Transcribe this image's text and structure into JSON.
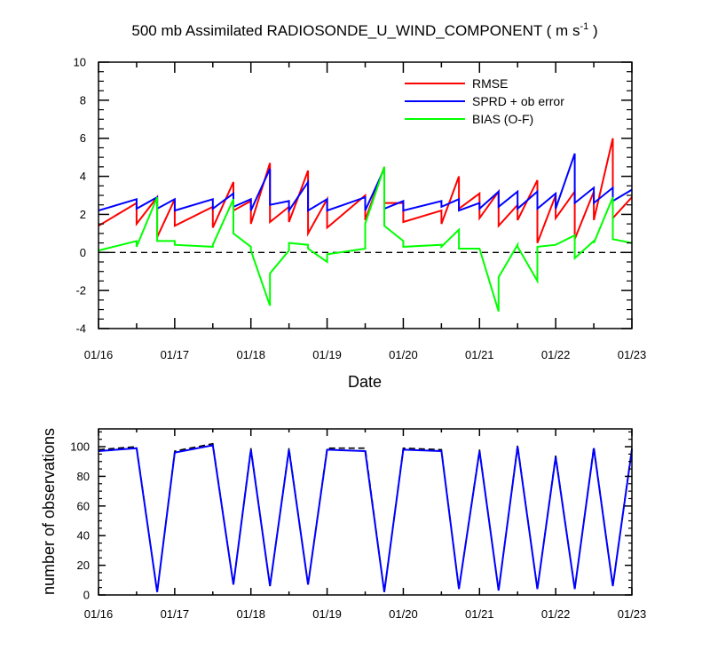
{
  "chart_data": [
    {
      "type": "line",
      "title_main": "500 mb Assimilated RADIOSONDE_U_WIND_COMPONENT ( m s",
      "title_sup": "-1",
      "title_end": " )",
      "xlabel": "Date",
      "ylabel": "",
      "xlim": [
        0,
        7
      ],
      "ylim": [
        -4,
        10
      ],
      "yticks": [
        -4,
        -2,
        0,
        2,
        4,
        6,
        8,
        10
      ],
      "xticks": [
        0,
        1,
        2,
        3,
        4,
        5,
        6,
        7
      ],
      "xtick_labels": [
        "01/16",
        "01/17",
        "01/18",
        "01/19",
        "01/20",
        "01/21",
        "01/22",
        "01/23"
      ],
      "legend_position": "top-right",
      "reference_line": 0,
      "series": [
        {
          "name": "RMSE",
          "color": "#ff0000",
          "x": [
            0,
            0.5,
            0.5,
            0.77,
            0.77,
            1,
            1,
            1.5,
            1.5,
            1.77,
            1.77,
            2,
            2,
            2.25,
            2.25,
            2.5,
            2.5,
            2.75,
            2.75,
            3,
            3,
            3.5,
            3.5,
            3.75,
            3.75,
            4,
            4,
            4.5,
            4.5,
            4.73,
            4.73,
            5,
            5,
            5.25,
            5.25,
            5.5,
            5.5,
            5.76,
            5.76,
            6,
            6,
            6.25,
            6.25,
            6.5,
            6.5,
            6.75,
            6.75,
            7
          ],
          "y": [
            1.4,
            2.6,
            1.5,
            2.9,
            0.8,
            2.8,
            1.4,
            2.4,
            1.3,
            3.7,
            2.2,
            2.7,
            1.5,
            4.7,
            1.6,
            2.4,
            1.6,
            4.3,
            1.0,
            2.8,
            1.3,
            3.0,
            1.7,
            4.5,
            2.6,
            2.6,
            1.6,
            2.2,
            1.5,
            4.0,
            2.3,
            3.1,
            1.8,
            3.2,
            1.4,
            2.5,
            1.7,
            3.8,
            0.5,
            3.0,
            1.8,
            3.2,
            0.7,
            3.2,
            1.7,
            6.0,
            1.8,
            2.9
          ]
        },
        {
          "name": "SPRD + ob error",
          "color": "#0000ff",
          "x": [
            0,
            0.5,
            0.5,
            0.77,
            0.77,
            1,
            1,
            1.5,
            1.5,
            1.77,
            1.77,
            2,
            2,
            2.25,
            2.25,
            2.5,
            2.5,
            2.75,
            2.75,
            3,
            3,
            3.5,
            3.5,
            3.75,
            3.75,
            4,
            4,
            4.5,
            4.5,
            4.73,
            4.73,
            5,
            5,
            5.25,
            5.25,
            5.5,
            5.5,
            5.76,
            5.76,
            6,
            6,
            6.25,
            6.25,
            6.5,
            6.5,
            6.75,
            6.75,
            7
          ],
          "y": [
            2.2,
            2.8,
            2.3,
            2.9,
            2.3,
            2.8,
            2.2,
            2.8,
            2.3,
            3.1,
            2.4,
            2.8,
            2.2,
            4.4,
            2.5,
            2.7,
            2.2,
            3.7,
            2.2,
            2.8,
            2.2,
            2.9,
            2.2,
            4.4,
            2.3,
            2.7,
            2.2,
            2.7,
            2.4,
            2.8,
            2.2,
            2.6,
            2.3,
            3.2,
            2.4,
            3.2,
            2.3,
            3.2,
            2.3,
            3.1,
            2.3,
            5.2,
            2.6,
            3.4,
            2.6,
            3.4,
            2.7,
            3.3
          ]
        },
        {
          "name": "BIAS (O-F)",
          "color": "#00ff00",
          "x": [
            0,
            0.5,
            0.5,
            0.77,
            0.77,
            1,
            1,
            1.5,
            1.5,
            1.77,
            1.77,
            2,
            2,
            2.25,
            2.25,
            2.5,
            2.5,
            2.75,
            2.75,
            3,
            3,
            3.5,
            3.5,
            3.75,
            3.75,
            4,
            4,
            4.5,
            4.5,
            4.73,
            4.73,
            5,
            5,
            5.25,
            5.25,
            5.5,
            5.5,
            5.76,
            5.76,
            6,
            6,
            6.25,
            6.25,
            6.5,
            6.5,
            6.75,
            6.75,
            7
          ],
          "y": [
            0.1,
            0.6,
            0.3,
            2.9,
            0.6,
            0.6,
            0.4,
            0.3,
            0.4,
            2.8,
            1.0,
            0.3,
            0.1,
            -2.8,
            -1.1,
            0.1,
            0.5,
            0.4,
            0.2,
            -0.5,
            -0.1,
            0.2,
            1.5,
            4.5,
            1.4,
            0.6,
            0.3,
            0.4,
            0.3,
            1.2,
            0.2,
            0.2,
            0.2,
            -3.1,
            -1.3,
            0.4,
            0.3,
            -1.5,
            0.3,
            0.4,
            0.4,
            0.9,
            -0.3,
            0.6,
            0.5,
            2.9,
            0.7,
            0.5
          ]
        }
      ]
    },
    {
      "type": "line",
      "title": "",
      "xlabel": "",
      "ylabel": "number of observations",
      "xlim": [
        0,
        7
      ],
      "ylim": [
        0,
        112
      ],
      "yticks": [
        0,
        20,
        40,
        60,
        80,
        100
      ],
      "xticks": [
        0,
        1,
        2,
        3,
        4,
        5,
        6,
        7
      ],
      "xtick_labels": [
        "01/16",
        "01/17",
        "01/18",
        "01/19",
        "01/20",
        "01/21",
        "01/22",
        "01/23"
      ],
      "series": [
        {
          "style": "dashed",
          "color": "#000000",
          "x": [
            0,
            0.5,
            0.77,
            1,
            1.5,
            1.77,
            2,
            2.25,
            2.5,
            2.75,
            3,
            3.5,
            3.75,
            4,
            4.5,
            4.73,
            5,
            5.25,
            5.5,
            5.76,
            6,
            6.25,
            6.5,
            6.75,
            7
          ],
          "y": [
            98,
            100,
            2,
            97,
            102,
            7,
            99,
            6,
            99,
            7,
            99,
            99,
            2,
            99,
            98,
            4,
            98,
            3,
            101,
            4,
            94,
            4,
            100,
            6,
            99
          ]
        },
        {
          "style": "solid",
          "color": "#0000ff",
          "x": [
            0,
            0.5,
            0.77,
            1,
            1.5,
            1.77,
            2,
            2.25,
            2.5,
            2.75,
            3,
            3.5,
            3.75,
            4,
            4.5,
            4.73,
            5,
            5.25,
            5.5,
            5.76,
            6,
            6.25,
            6.5,
            6.75,
            7
          ],
          "y": [
            97,
            99,
            2,
            96,
            101,
            7,
            98,
            6,
            98,
            7,
            98,
            97,
            2,
            98,
            97,
            4,
            97,
            3,
            100,
            4,
            93,
            4,
            99,
            6,
            98
          ]
        }
      ]
    }
  ]
}
